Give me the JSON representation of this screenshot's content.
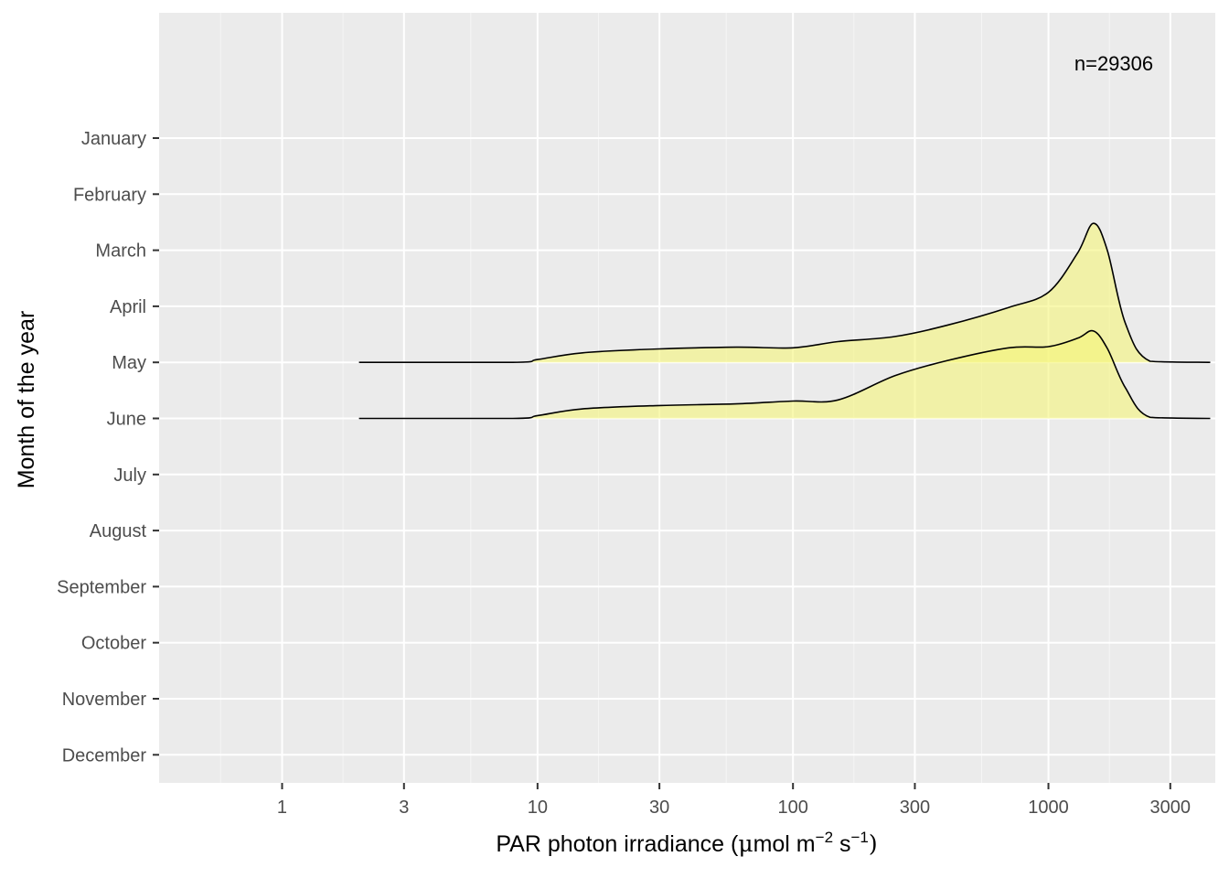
{
  "chart_data": {
    "type": "ridgeline",
    "xlabel_parts": {
      "main": "PAR  photon  irradiance  (",
      "mu": "μ",
      "mol": "mol m",
      "m_exp": "−2",
      "s": " s",
      "s_exp": "−1",
      "close": ")"
    },
    "ylabel": "Month of the year",
    "x_scale": "log10",
    "x_ticks": [
      1,
      3,
      10,
      30,
      100,
      300,
      1000,
      3000
    ],
    "x_tick_labels": [
      "1",
      "3",
      "10",
      "30",
      "100",
      "300",
      "1000",
      "3000"
    ],
    "xlim": [
      0.33,
      4500
    ],
    "categories": [
      "January",
      "February",
      "March",
      "April",
      "May",
      "June",
      "July",
      "August",
      "September",
      "October",
      "November",
      "December"
    ],
    "annotation": "n=29306",
    "fill_color": "#f5f57a",
    "series": [
      {
        "category": "May",
        "density": [
          [
            2,
            0
          ],
          [
            8,
            0
          ],
          [
            10,
            0.05
          ],
          [
            15,
            0.17
          ],
          [
            30,
            0.24
          ],
          [
            60,
            0.27
          ],
          [
            100,
            0.26
          ],
          [
            150,
            0.37
          ],
          [
            250,
            0.46
          ],
          [
            400,
            0.66
          ],
          [
            700,
            0.98
          ],
          [
            1000,
            1.25
          ],
          [
            1300,
            1.95
          ],
          [
            1500,
            2.48
          ],
          [
            1700,
            2.0
          ],
          [
            2000,
            0.7
          ],
          [
            2500,
            0.02
          ],
          [
            4300,
            0
          ]
        ]
      },
      {
        "category": "June",
        "density": [
          [
            2,
            0
          ],
          [
            8,
            0
          ],
          [
            10,
            0.05
          ],
          [
            15,
            0.17
          ],
          [
            30,
            0.23
          ],
          [
            60,
            0.26
          ],
          [
            100,
            0.31
          ],
          [
            150,
            0.33
          ],
          [
            250,
            0.76
          ],
          [
            400,
            1.03
          ],
          [
            700,
            1.26
          ],
          [
            1000,
            1.28
          ],
          [
            1300,
            1.43
          ],
          [
            1500,
            1.56
          ],
          [
            1700,
            1.25
          ],
          [
            2000,
            0.55
          ],
          [
            2500,
            0.02
          ],
          [
            4300,
            0
          ]
        ]
      }
    ],
    "grid": true,
    "legend": "none"
  }
}
